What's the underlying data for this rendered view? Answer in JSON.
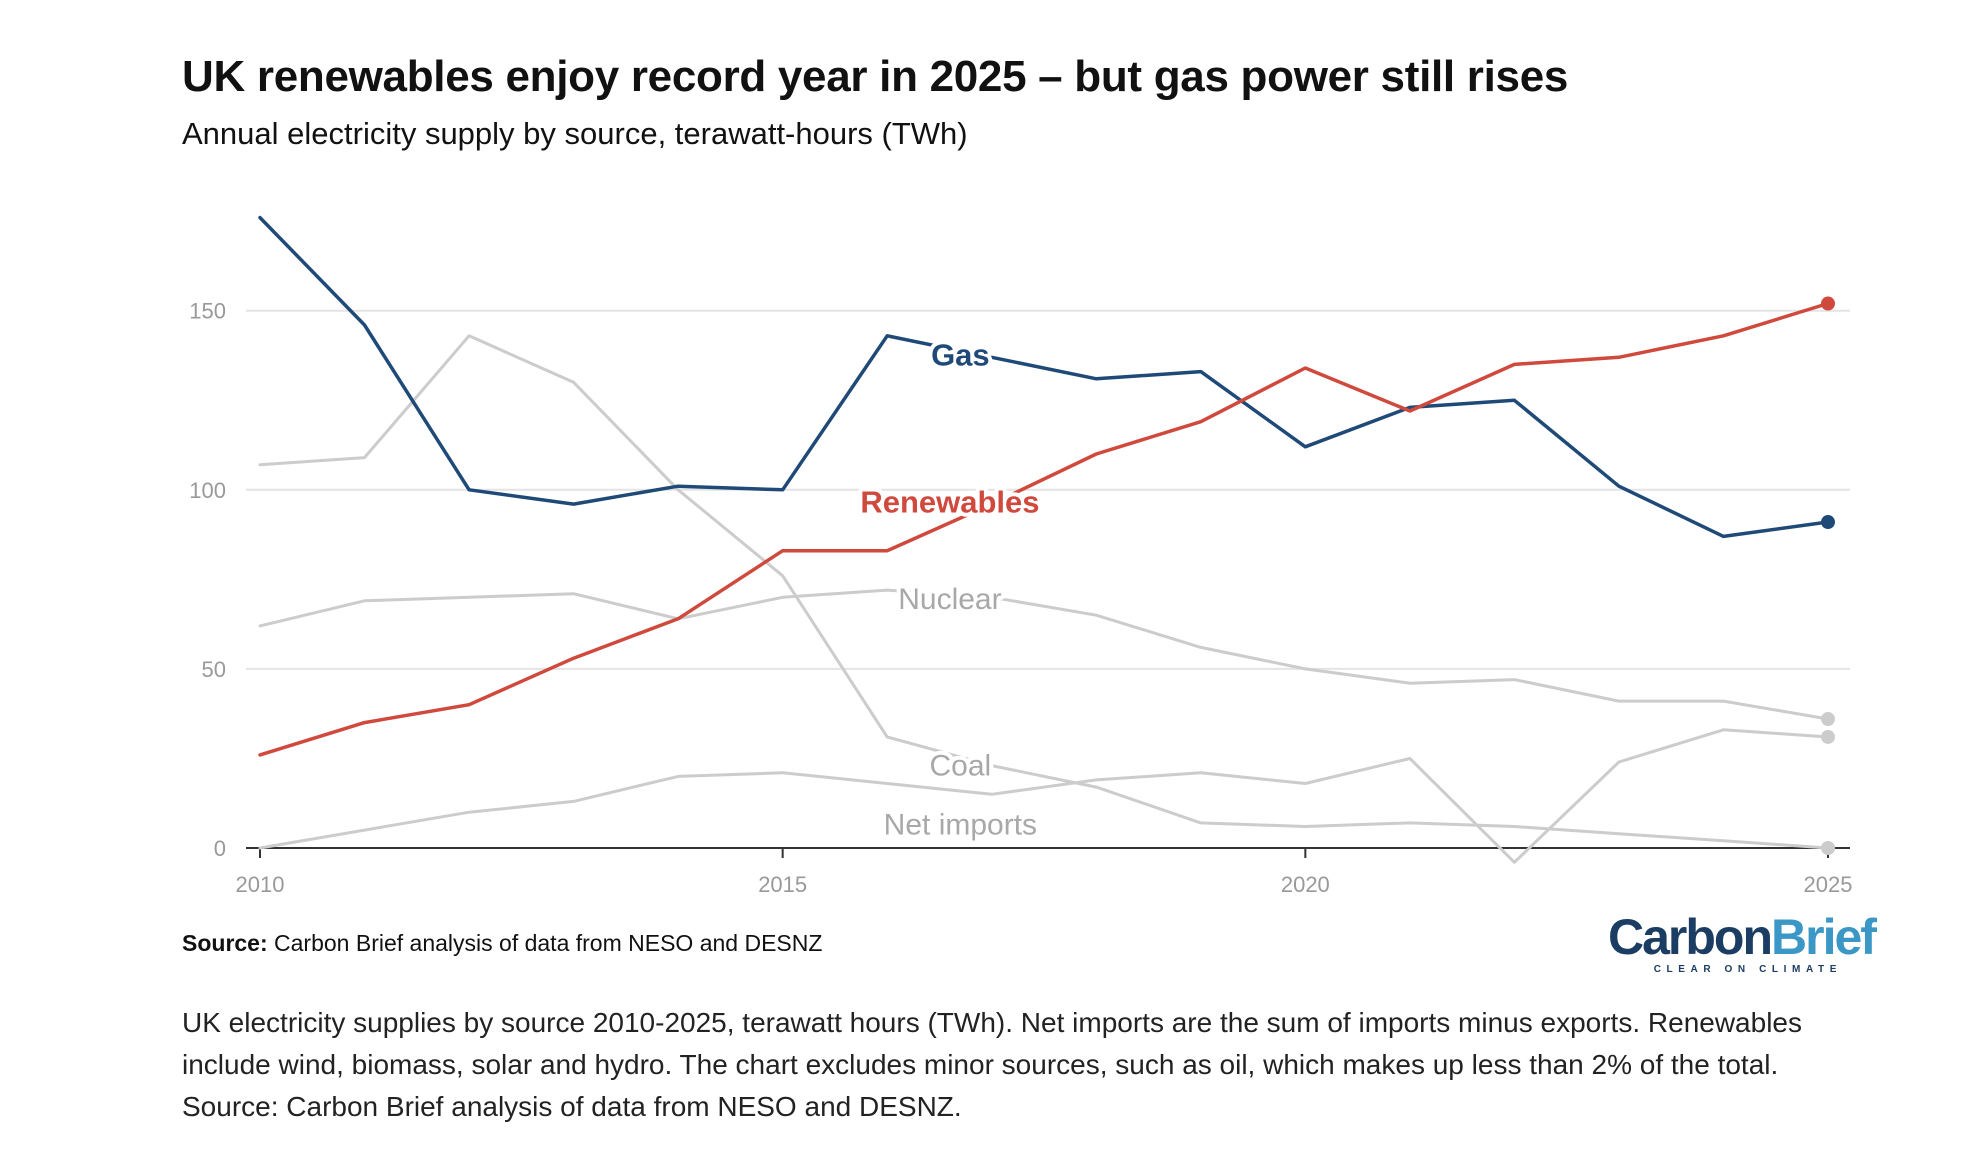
{
  "title": "UK renewables enjoy record year in 2025 – but gas power still rises",
  "subtitle": "Annual electricity supply by source, terawatt-hours (TWh)",
  "source_label": "Source:",
  "source_text": "Carbon Brief analysis of data from NESO and DESNZ",
  "logo": {
    "part1": "Carbon",
    "part2": "Brief",
    "tagline": "CLEAR ON CLIMATE"
  },
  "caption": "UK electricity supplies by source 2010-2025, terawatt hours (TWh). Net imports are the sum of imports minus exports. Renewables include wind, biomass, solar and hydro. The chart excludes minor sources, such as oil, which makes up less than 2% of the total. Source: Carbon Brief analysis of data from NESO and DESNZ.",
  "colors": {
    "gas": "#1f4a78",
    "renewables": "#d0493d",
    "other": "#cccccc",
    "other_label": "#a8a8a8",
    "grid": "#e4e4e4",
    "axis": "#333333",
    "tick_label": "#999999"
  },
  "chart_data": {
    "type": "line",
    "title": "UK renewables enjoy record year in 2025 – but gas power still rises",
    "subtitle": "Annual electricity supply by source, terawatt-hours (TWh)",
    "xlabel": "",
    "ylabel": "",
    "x": [
      2010,
      2011,
      2012,
      2013,
      2014,
      2015,
      2016,
      2017,
      2018,
      2019,
      2020,
      2021,
      2022,
      2023,
      2024,
      2025
    ],
    "xlim": [
      2010,
      2025
    ],
    "ylim": [
      0,
      175
    ],
    "x_ticks": [
      2010,
      2015,
      2020,
      2025
    ],
    "y_ticks": [
      0,
      50,
      100,
      150
    ],
    "grid": "horizontal",
    "legend": "inline labels",
    "series": [
      {
        "name": "Gas",
        "color": "#1f4a78",
        "highlight": true,
        "values": [
          176,
          146,
          100,
          96,
          101,
          100,
          143,
          137,
          131,
          133,
          112,
          123,
          125,
          101,
          87,
          91
        ]
      },
      {
        "name": "Renewables",
        "color": "#d0493d",
        "highlight": true,
        "values": [
          26,
          35,
          40,
          53,
          64,
          83,
          83,
          96,
          110,
          119,
          134,
          122,
          135,
          137,
          143,
          152
        ]
      },
      {
        "name": "Nuclear",
        "color": "#cccccc",
        "highlight": false,
        "values": [
          62,
          69,
          70,
          71,
          64,
          70,
          72,
          70,
          65,
          56,
          50,
          46,
          47,
          41,
          41,
          36
        ]
      },
      {
        "name": "Coal",
        "color": "#cccccc",
        "highlight": false,
        "values": [
          107,
          109,
          143,
          130,
          100,
          76,
          31,
          23,
          17,
          7,
          6,
          7,
          6,
          4,
          2,
          0
        ]
      },
      {
        "name": "Net imports",
        "color": "#cccccc",
        "highlight": false,
        "values": [
          0,
          5,
          10,
          13,
          20,
          21,
          18,
          15,
          19,
          21,
          18,
          25,
          -4,
          24,
          33,
          31
        ]
      }
    ]
  }
}
